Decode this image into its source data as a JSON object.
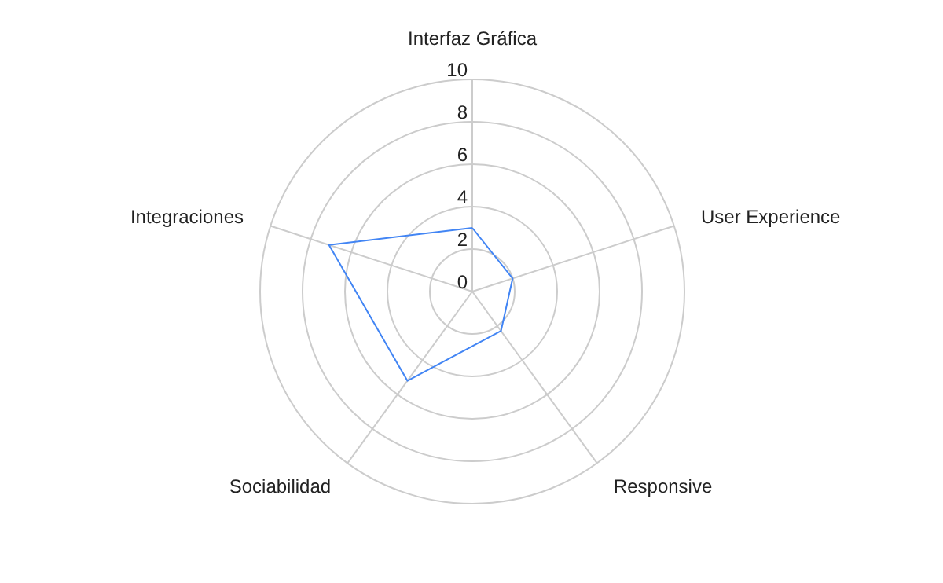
{
  "chart_data": {
    "type": "radar",
    "categories": [
      "Interfaz Gráfica",
      "User Experience",
      "Responsive",
      "Sociabilidad",
      "Integraciones"
    ],
    "series": [
      {
        "color": "#4285f4",
        "values": [
          3.0,
          2.0,
          2.3,
          5.2,
          7.1
        ]
      }
    ],
    "ylim": [
      0,
      10
    ],
    "yticks": [
      0,
      2,
      4,
      6,
      8,
      10
    ],
    "grid": true,
    "marker": "none",
    "line_style": "solid"
  }
}
